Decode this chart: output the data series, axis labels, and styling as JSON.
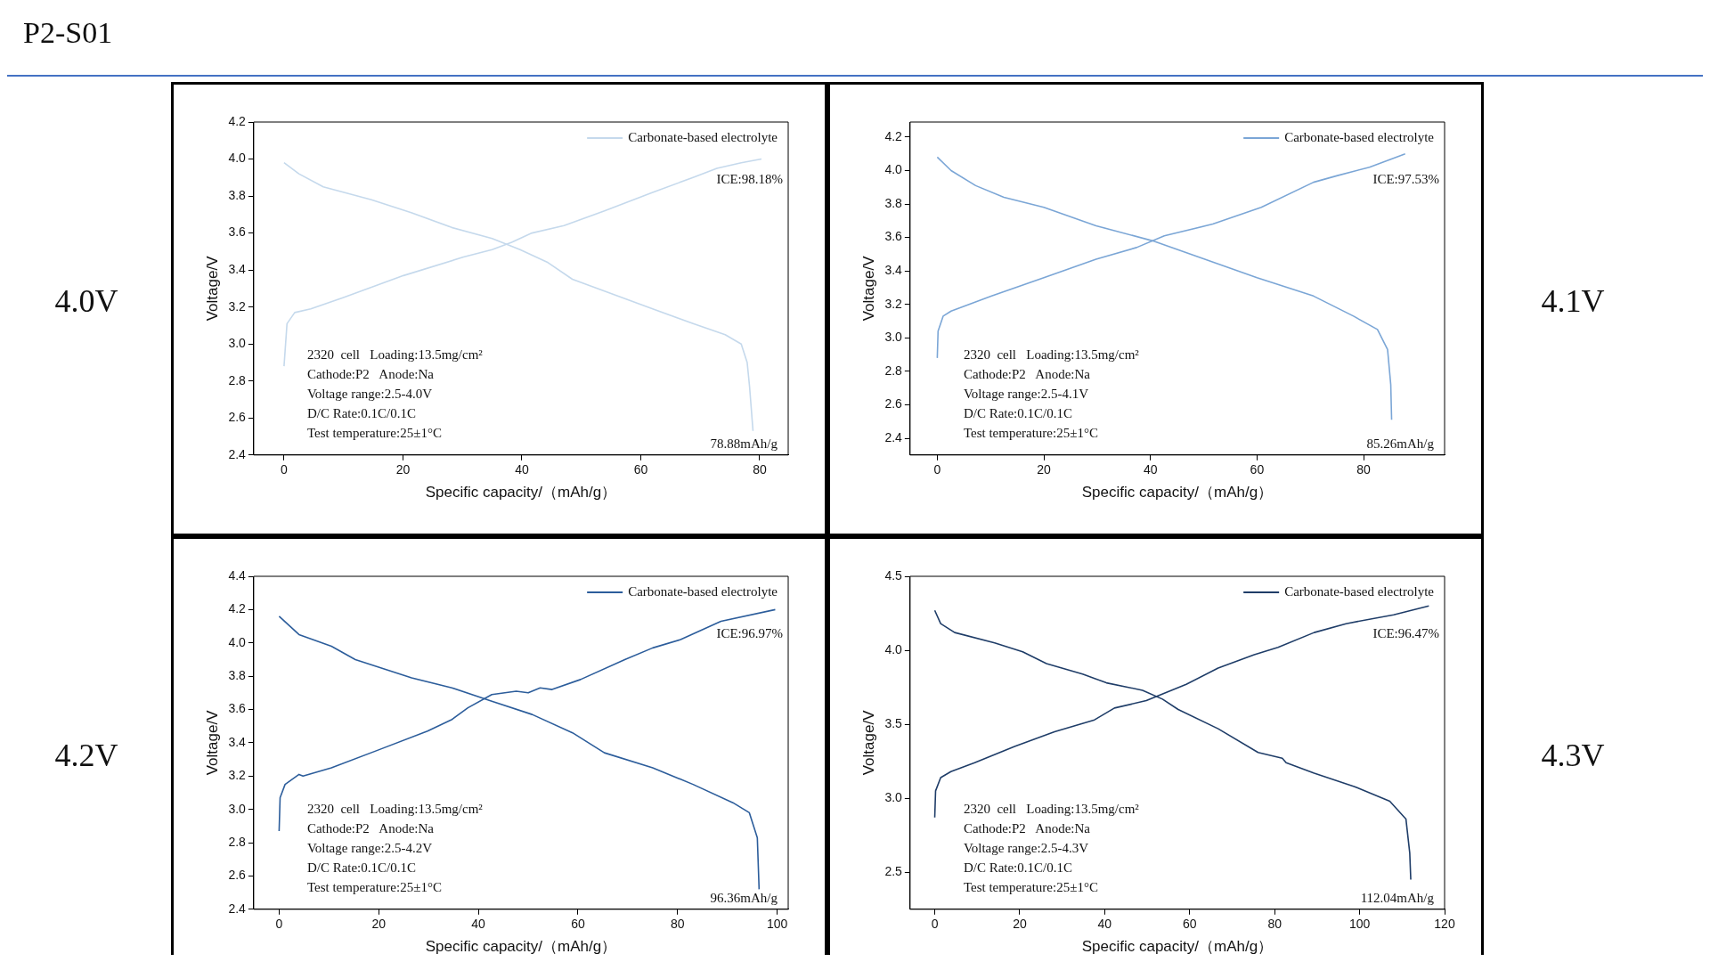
{
  "chart_data": [
    {
      "type": "line",
      "title": "P2-S01",
      "xlabel": "Specific capacity/（mAh/g）",
      "ylabel": "Voltage/V",
      "xlim": [
        -5.1,
        84.8
      ],
      "xticks": [
        0,
        20,
        40,
        60,
        80
      ],
      "ylim": [
        2.4,
        4.2
      ],
      "yticks": [
        {
          "value": 2.4,
          "label": "2.4"
        },
        {
          "value": 2.6,
          "label": "2.6"
        },
        {
          "value": 2.8,
          "label": "2.8"
        },
        {
          "value": 3.0,
          "label": "3.0"
        },
        {
          "value": 3.2,
          "label": "3.2"
        },
        {
          "value": 3.4,
          "label": "3.4"
        },
        {
          "value": 3.6,
          "label": "3.6"
        },
        {
          "value": 3.8,
          "label": "3.8"
        },
        {
          "value": 4.0,
          "label": "4.0"
        },
        {
          "value": 4.2,
          "label": "4.2"
        }
      ],
      "legend": "top right",
      "marker": "none",
      "annotations": [
        "4.0V",
        "2320  cell   Loading:13.5mg/cm²",
        "Cathode:P2   Anode:Na",
        "Voltage range:2.5-4.0V",
        "D/C Rate:0.1C/0.1C",
        "Test temperature:25±1°C",
        "ICE:98.18%",
        "78.88mAh/g"
      ],
      "series": [
        {
          "name": "Carbonate-based electrolyte",
          "color": "#c5d9ec",
          "x": [
            0,
            0.5,
            1.8,
            4.5,
            9.9,
            20.1,
            30.2,
            35,
            38.3,
            41.7,
            47.1,
            53.9,
            62,
            68.8,
            72.8,
            76.9,
            80.3
          ],
          "values": [
            2.88,
            3.11,
            3.17,
            3.19,
            3.25,
            3.37,
            3.47,
            3.51,
            3.55,
            3.6,
            3.64,
            3.72,
            3.82,
            3.9,
            3.95,
            3.98,
            4.0
          ]
        },
        {
          "color": "#c5d9ec",
          "x": [
            0,
            2.5,
            6.6,
            14.7,
            21.4,
            28.2,
            35,
            39.7,
            44.4,
            48.5,
            55.3,
            62,
            68.8,
            74.2,
            76.9,
            77.9,
            78.3,
            78.88
          ],
          "values": [
            3.98,
            3.92,
            3.85,
            3.78,
            3.71,
            3.63,
            3.57,
            3.51,
            3.44,
            3.35,
            3.27,
            3.19,
            3.11,
            3.05,
            3.0,
            2.9,
            2.77,
            2.53
          ]
        }
      ]
    },
    {
      "type": "line",
      "xlabel": "Specific capacity/（mAh/g）",
      "ylabel": "Voltage/V",
      "xlim": [
        -5.1,
        95.2
      ],
      "xticks": [
        0,
        20,
        40,
        60,
        80
      ],
      "ylim": [
        2.3,
        4.29
      ],
      "yticks": [
        {
          "value": 2.4,
          "label": "2.4"
        },
        {
          "value": 2.6,
          "label": "2.6"
        },
        {
          "value": 2.8,
          "label": "2.8"
        },
        {
          "value": 3.0,
          "label": "3.0"
        },
        {
          "value": 3.2,
          "label": "3.2"
        },
        {
          "value": 3.4,
          "label": "3.4"
        },
        {
          "value": 3.6,
          "label": "3.6"
        },
        {
          "value": 3.8,
          "label": "3.8"
        },
        {
          "value": 4.0,
          "label": "4.0"
        },
        {
          "value": 4.2,
          "label": "4.2"
        }
      ],
      "legend": "top right",
      "marker": "none",
      "annotations": [
        "4.1V",
        "2320  cell   Loading:13.5mg/cm²",
        "Cathode:P2   Anode:Na",
        "Voltage range:2.5-4.1V",
        "D/C Rate:0.1C/0.1C",
        "Test temperature:25±1°C",
        "ICE:97.53%",
        "85.26mAh/g"
      ],
      "series": [
        {
          "name": "Carbonate-based electrolyte",
          "color": "#7ba6d6",
          "x": [
            0,
            0.15,
            1.1,
            2.6,
            10.2,
            20,
            29.8,
            37.4,
            42.6,
            51.7,
            60.8,
            70.6,
            75.1,
            81.1,
            87.8
          ],
          "values": [
            2.88,
            3.04,
            3.13,
            3.16,
            3.25,
            3.36,
            3.47,
            3.54,
            3.61,
            3.68,
            3.78,
            3.93,
            3.97,
            4.02,
            4.1
          ]
        },
        {
          "color": "#7ba6d6",
          "x": [
            0,
            2.6,
            7.2,
            12.5,
            20,
            29.8,
            40.4,
            50.2,
            60,
            70.6,
            78.1,
            82.6,
            84.5,
            85.1,
            85.26
          ],
          "values": [
            4.08,
            4.0,
            3.91,
            3.84,
            3.78,
            3.67,
            3.58,
            3.47,
            3.36,
            3.25,
            3.13,
            3.05,
            2.93,
            2.72,
            2.51
          ]
        }
      ]
    },
    {
      "type": "line",
      "xlabel": "Specific capacity/（mAh/g）",
      "ylabel": "Voltage/V",
      "xlim": [
        -5.1,
        102.2
      ],
      "xticks": [
        0,
        20,
        40,
        60,
        80,
        100
      ],
      "ylim": [
        2.4,
        4.4
      ],
      "yticks": [
        {
          "value": 2.4,
          "label": "2.4"
        },
        {
          "value": 2.6,
          "label": "2.6"
        },
        {
          "value": 2.8,
          "label": "2.8"
        },
        {
          "value": 3.0,
          "label": "3.0"
        },
        {
          "value": 3.2,
          "label": "3.2"
        },
        {
          "value": 3.4,
          "label": "3.4"
        },
        {
          "value": 3.6,
          "label": "3.6"
        },
        {
          "value": 3.8,
          "label": "3.8"
        },
        {
          "value": 4.0,
          "label": "4.0"
        },
        {
          "value": 4.2,
          "label": "4.2"
        },
        {
          "value": 4.4,
          "label": "4.4"
        }
      ],
      "legend": "top right",
      "marker": "none",
      "annotations": [
        "4.2V",
        "2320  cell   Loading:13.5mg/cm²",
        "Cathode:P2   Anode:Na",
        "Voltage range:2.5-4.2V",
        "D/C Rate:0.1C/0.1C",
        "Test temperature:25±1°C",
        "ICE:96.97%",
        "96.36mAh/g"
      ],
      "series": [
        {
          "name": "Carbonate-based electrolyte",
          "color": "#2c5d9b",
          "x": [
            0,
            0.2,
            1.2,
            4,
            4.8,
            10.5,
            20.2,
            29.8,
            34.7,
            37.9,
            42.7,
            47.6,
            50,
            52.4,
            54.8,
            60.5,
            69.4,
            75,
            80.6,
            88.7,
            99.6
          ],
          "values": [
            2.87,
            3.07,
            3.15,
            3.21,
            3.2,
            3.25,
            3.36,
            3.47,
            3.54,
            3.61,
            3.69,
            3.71,
            3.7,
            3.73,
            3.72,
            3.78,
            3.9,
            3.97,
            4.02,
            4.13,
            4.2
          ]
        },
        {
          "color": "#2c5d9b",
          "x": [
            0,
            4,
            10.5,
            15.3,
            26.6,
            34.7,
            42.7,
            50.8,
            58.9,
            65.3,
            75,
            83.1,
            91.1,
            94.4,
            96,
            96.36
          ],
          "values": [
            4.16,
            4.05,
            3.98,
            3.9,
            3.79,
            3.73,
            3.65,
            3.57,
            3.46,
            3.34,
            3.25,
            3.15,
            3.04,
            2.98,
            2.83,
            2.52
          ]
        }
      ]
    },
    {
      "type": "line",
      "xlabel": "Specific capacity/（mAh/g）",
      "ylabel": "Voltage/V",
      "xlim": [
        -5.8,
        120
      ],
      "xticks": [
        0,
        20,
        40,
        60,
        80,
        100,
        120
      ],
      "ylim": [
        2.25,
        4.5
      ],
      "yticks": [
        {
          "value": 2.5,
          "label": "2.5"
        },
        {
          "value": 3.0,
          "label": "3.0"
        },
        {
          "value": 3.5,
          "label": "3.5"
        },
        {
          "value": 4.0,
          "label": "4.0"
        },
        {
          "value": 4.5,
          "label": "4.5"
        }
      ],
      "legend": "top right",
      "marker": "none",
      "annotations": [
        "4.3V",
        "2320  cell   Loading:13.5mg/cm²",
        "Cathode:P2   Anode:Na",
        "Voltage range:2.5-4.3V",
        "D/C Rate:0.1C/0.1C",
        "Test temperature:25±1°C",
        "ICE:96.47%",
        "112.04mAh/g"
      ],
      "series": [
        {
          "name": "Carbonate-based electrolyte",
          "color": "#1f3d68",
          "x": [
            0,
            0.2,
            1.4,
            3.8,
            9.4,
            18.8,
            28.2,
            37.6,
            42.3,
            49.8,
            59.2,
            66.7,
            75.2,
            80.8,
            89.3,
            96.8,
            108,
            116.3
          ],
          "values": [
            2.87,
            3.05,
            3.14,
            3.18,
            3.24,
            3.35,
            3.45,
            3.53,
            3.61,
            3.66,
            3.77,
            3.88,
            3.97,
            4.02,
            4.12,
            4.18,
            4.24,
            4.3
          ]
        },
        {
          "color": "#1f3d68",
          "x": [
            0,
            1.4,
            4.7,
            14.1,
            20.7,
            26.3,
            34.8,
            40.4,
            48.9,
            53.6,
            57.3,
            66.7,
            76.1,
            81.8,
            82.7,
            89.3,
            98.7,
            107.1,
            110.9,
            111.8,
            112.04
          ],
          "values": [
            4.27,
            4.18,
            4.12,
            4.05,
            3.99,
            3.91,
            3.84,
            3.78,
            3.73,
            3.67,
            3.6,
            3.47,
            3.31,
            3.27,
            3.24,
            3.17,
            3.08,
            2.98,
            2.86,
            2.63,
            2.45
          ]
        }
      ]
    }
  ]
}
